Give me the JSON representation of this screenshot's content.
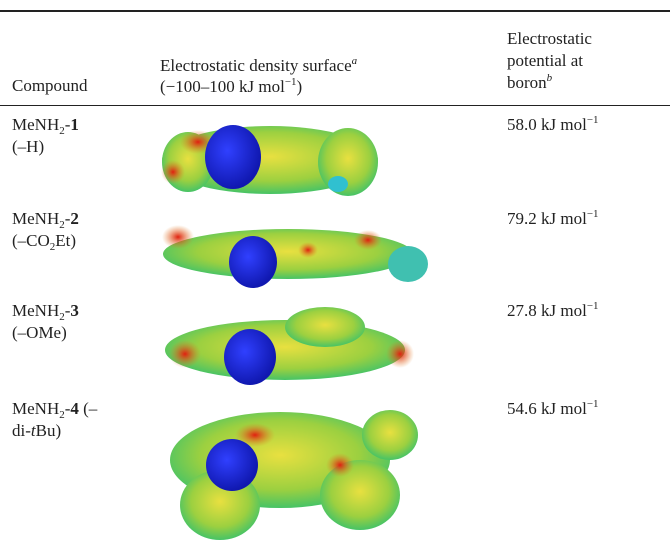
{
  "table": {
    "headers": {
      "compound": "Compound",
      "surface": {
        "line1": "Electrostatic density surface",
        "note": "a",
        "line2_open": "(−100–100 kJ mol",
        "line2_exp": "−1",
        "line2_close": ")"
      },
      "potential": {
        "line1": "Electrostatic",
        "line2": "potential at",
        "line3": "boron",
        "note": "b"
      }
    },
    "rows": [
      {
        "compound": [
          {
            "text": "MeNH"
          },
          {
            "text": "2",
            "style": "sub"
          },
          {
            "text": "-"
          },
          {
            "text": "1",
            "style": "bold"
          }
        ],
        "substituent": [
          {
            "text": "(–H)"
          }
        ],
        "potential": {
          "value": "58.0",
          "unit": "kJ mol",
          "exponent": "−1"
        }
      },
      {
        "compound": [
          {
            "text": "MeNH"
          },
          {
            "text": "2",
            "style": "sub"
          },
          {
            "text": "-"
          },
          {
            "text": "2",
            "style": "bold"
          }
        ],
        "substituent": [
          {
            "text": "(–CO"
          },
          {
            "text": "2",
            "style": "sub"
          },
          {
            "text": "Et)"
          }
        ],
        "potential": {
          "value": "79.2",
          "unit": "kJ mol",
          "exponent": "−1"
        }
      },
      {
        "compound": [
          {
            "text": "MeNH"
          },
          {
            "text": "2",
            "style": "sub"
          },
          {
            "text": "-"
          },
          {
            "text": "3",
            "style": "bold"
          }
        ],
        "substituent": [
          {
            "text": "(–OMe)"
          }
        ],
        "potential": {
          "value": "27.8",
          "unit": "kJ mol",
          "exponent": "−1"
        }
      },
      {
        "compound": [
          {
            "text": "MeNH"
          },
          {
            "text": "2",
            "style": "sub"
          },
          {
            "text": "-"
          },
          {
            "text": "4",
            "style": "bold"
          },
          {
            "text": " (–"
          }
        ],
        "substituent": [
          {
            "text": "di-"
          },
          {
            "text": "t",
            "style": "italic"
          },
          {
            "text": "Bu)"
          }
        ],
        "potential": {
          "value": "54.6",
          "unit": "kJ mol",
          "exponent": "−1"
        }
      }
    ]
  }
}
